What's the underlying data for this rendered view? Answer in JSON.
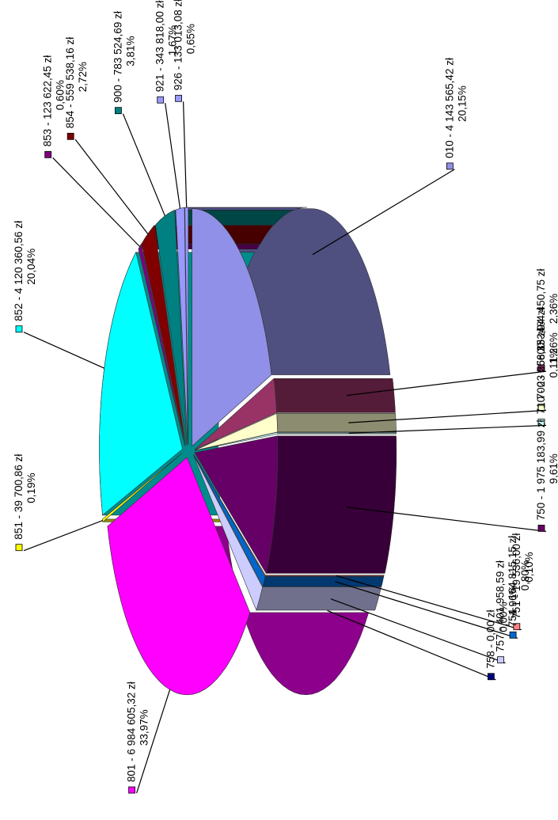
{
  "chart_data": {
    "type": "pie",
    "title": "",
    "slices": [
      {
        "code": "010",
        "label": "010 - 4 143 565,42 zł",
        "value": 4143565.42,
        "percent_label": "20,15%",
        "color": "#9090e8"
      },
      {
        "code": "600",
        "label": "600 - 484 450,75 zł",
        "value": 484450.75,
        "percent_label": "2,36%",
        "color": "#993366"
      },
      {
        "code": "700",
        "label": "700 - 258 153,94 zł",
        "value": 258153.94,
        "percent_label": "1,26%",
        "color": "#ffffcc"
      },
      {
        "code": "710",
        "label": "710 - 23 566,33 zł",
        "value": 23566.33,
        "percent_label": "0,11%",
        "color": "#ccffff"
      },
      {
        "code": "750",
        "label": "750 - 1 975 183,99 zł",
        "value": 1975183.99,
        "percent_label": "9,61%",
        "color": "#660066"
      },
      {
        "code": "751",
        "label": "751 - 19 536,00 zł",
        "value": 19536.0,
        "percent_label": "0,10%",
        "color": "#ff8080"
      },
      {
        "code": "754",
        "label": "754 - 164 815,15 zł",
        "value": 164815.15,
        "percent_label": "0,80%",
        "color": "#0066cc"
      },
      {
        "code": "757",
        "label": "757 - 401 958,59 zł",
        "value": 401958.59,
        "percent_label": "1,96%",
        "color": "#ccccff"
      },
      {
        "code": "758",
        "label": "758 - 0,00 zł",
        "value": 0.0,
        "percent_label": "0,00%",
        "color": "#000080"
      },
      {
        "code": "801",
        "label": "801 - 6 984 605,32 zł",
        "value": 6984605.32,
        "percent_label": "33,97%",
        "color": "#ff00ff"
      },
      {
        "code": "851",
        "label": "851 - 39 700,86 zł",
        "value": 39700.86,
        "percent_label": "0,19%",
        "color": "#ffff00"
      },
      {
        "code": "852",
        "label": "852 - 4 120 360,56 zł",
        "value": 4120360.56,
        "percent_label": "20,04%",
        "color": "#00ffff"
      },
      {
        "code": "853",
        "label": "853 - 123 622,45 zł",
        "value": 123622.45,
        "percent_label": "0,60%",
        "color": "#800080"
      },
      {
        "code": "854",
        "label": "854 - 559 538,16 zł",
        "value": 559538.16,
        "percent_label": "2,72%",
        "color": "#800000"
      },
      {
        "code": "900",
        "label": "900 - 783 524,69 zł",
        "value": 783524.69,
        "percent_label": "3,81%",
        "color": "#008080"
      },
      {
        "code": "921",
        "label": "921 - 343 818,00 zł",
        "value": 343818.0,
        "percent_label": "1,67%",
        "color": "#9999ff"
      },
      {
        "code": "926",
        "label": "926 - 133 013,08 zł",
        "value": 133013.08,
        "percent_label": "0,65%",
        "color": "#9999ff"
      }
    ]
  }
}
